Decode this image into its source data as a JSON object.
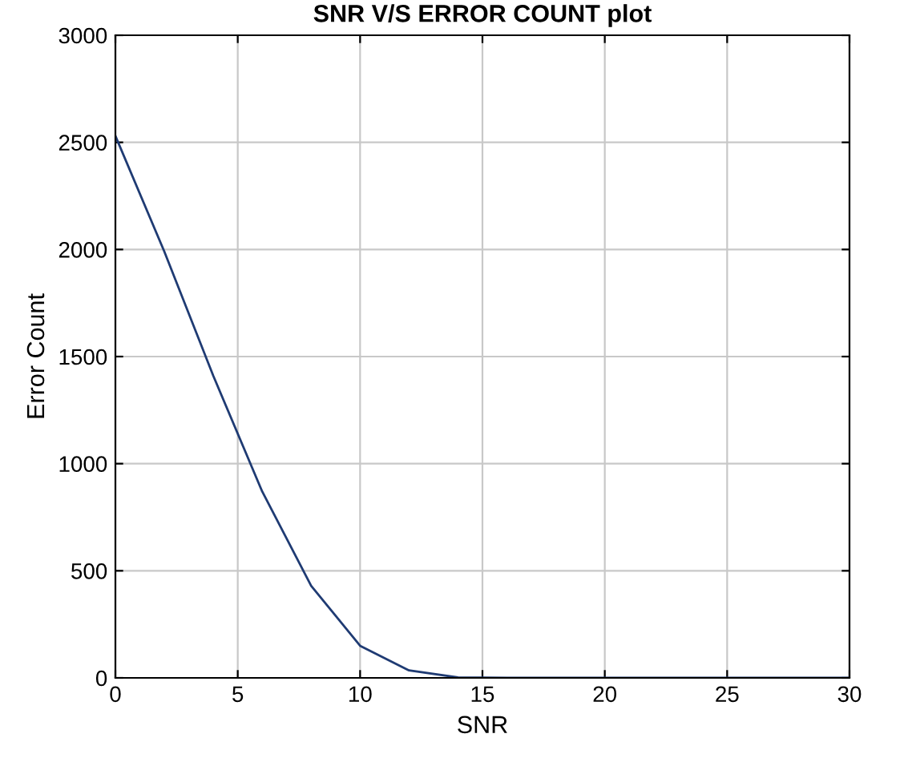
{
  "chart_data": {
    "type": "line",
    "title": "SNR V/S ERROR COUNT plot",
    "xlabel": "SNR",
    "ylabel": "Error Count",
    "x": [
      0,
      2,
      4,
      6,
      8,
      10,
      12,
      14,
      16,
      18,
      20,
      22,
      24,
      26,
      28,
      30
    ],
    "series": [
      {
        "color": "#1f3b73",
        "values": [
          2530,
          1990,
          1410,
          870,
          430,
          150,
          35,
          2,
          0,
          0,
          0,
          0,
          0,
          0,
          0,
          0
        ]
      }
    ],
    "xlim": [
      0,
      30
    ],
    "xticks": [
      0,
      5,
      10,
      15,
      20,
      25,
      30
    ],
    "ylim": [
      0,
      3000
    ],
    "yticks": [
      0,
      500,
      1000,
      1500,
      2000,
      2500,
      3000
    ],
    "grid": true,
    "marker": "none",
    "line_style": "solid"
  }
}
